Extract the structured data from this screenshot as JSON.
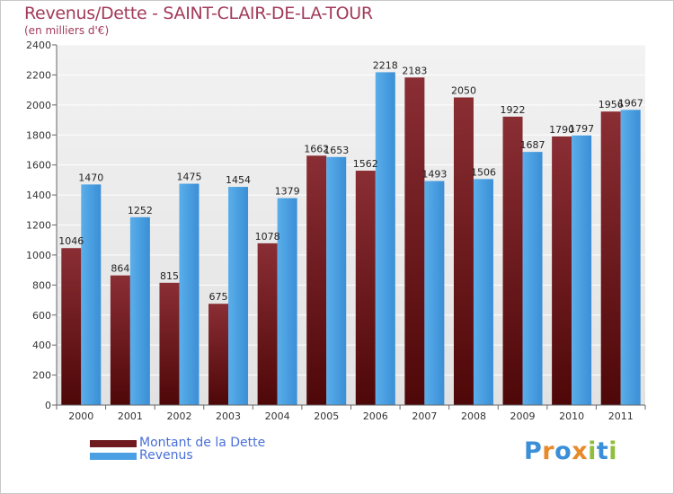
{
  "header": {
    "title": "Revenus/Dette - SAINT-CLAIR-DE-LA-TOUR",
    "subtitle": "(en milliers d'€)"
  },
  "logo": {
    "letters": [
      "P",
      "r",
      "o",
      "x",
      "i",
      "t",
      "i"
    ],
    "colors": [
      "#3a8fd8",
      "#e8892a",
      "#3a8fd8",
      "#e8892a",
      "#8fbe3a",
      "#3a8fd8",
      "#8fbe3a"
    ]
  },
  "colors": {
    "dette": "#6e1a1e",
    "revenus": "#4aa0e3",
    "title": "#a23a5a",
    "legend_text": "#4a6fd8",
    "grid": "#ffffff",
    "plot_bg": "#e8e8e8"
  },
  "chart_data": {
    "type": "bar",
    "title": "Revenus/Dette - SAINT-CLAIR-DE-LA-TOUR",
    "subtitle": "(en milliers d'€)",
    "xlabel": "",
    "ylabel": "",
    "ylim": [
      0,
      2400
    ],
    "yticks": [
      0,
      200,
      400,
      600,
      800,
      1000,
      1200,
      1400,
      1600,
      1800,
      2000,
      2200,
      2400
    ],
    "grid": true,
    "legend_position": "bottom-left",
    "categories": [
      "2000",
      "2001",
      "2002",
      "2003",
      "2004",
      "2005",
      "2006",
      "2007",
      "2008",
      "2009",
      "2010",
      "2011"
    ],
    "series": [
      {
        "name": "Montant de la Dette",
        "color": "#6e1a1e",
        "values": [
          1046,
          864,
          815,
          675,
          1078,
          1662,
          1562,
          2183,
          2050,
          1922,
          1790,
          1956
        ],
        "labels": [
          "1046",
          "864",
          "815",
          "675",
          "1078",
          "1662",
          "1562",
          "2183",
          "2050",
          "1922",
          "1790",
          "1956"
        ]
      },
      {
        "name": "Revenus",
        "color": "#4aa0e3",
        "values": [
          1470,
          1252,
          1475,
          1454,
          1379,
          1653,
          2218,
          1493,
          1506,
          1687,
          1797,
          1967
        ],
        "labels": [
          "1470",
          "1252",
          "1475",
          "1454",
          "1379",
          "1653",
          "2218",
          "1493",
          "1506",
          "1687",
          "1797",
          "1967"
        ]
      }
    ]
  }
}
